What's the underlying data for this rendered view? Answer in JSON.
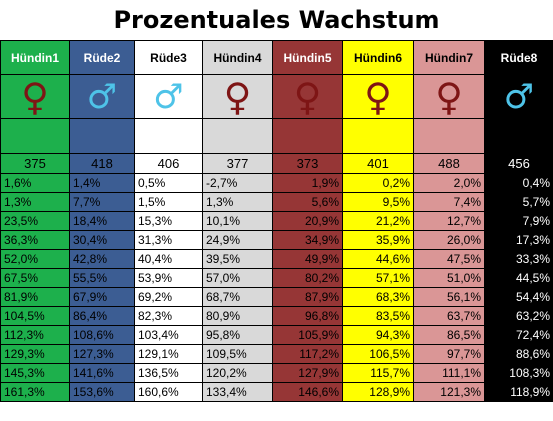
{
  "title": "Prozentuales Wachstum",
  "colors": {
    "green": "#1db04c",
    "blue": "#3c5d93",
    "white": "#ffffff",
    "gray": "#d9d9d9",
    "maroon": "#963636",
    "yellow": "#ffff00",
    "pink": "#da9696",
    "black": "#000000",
    "female_symbol": "#7e1515",
    "male_symbol": "#4ec3e8"
  },
  "columns": [
    {
      "name": "Hündin1",
      "symbol": "female-icon",
      "bg": "#1db04c",
      "header_text": "#ffffff"
    },
    {
      "name": "Rüde2",
      "symbol": "male-icon",
      "bg": "#3c5d93",
      "header_text": "#ffffff"
    },
    {
      "name": "Rüde3",
      "symbol": "male-icon",
      "bg": "#ffffff",
      "header_text": "#000000"
    },
    {
      "name": "Hündin4",
      "symbol": "female-icon",
      "bg": "#d9d9d9",
      "header_text": "#000000"
    },
    {
      "name": "Hündin5",
      "symbol": "female-icon",
      "bg": "#963636",
      "header_text": "#ffffff"
    },
    {
      "name": "Hündin6",
      "symbol": "female-icon",
      "bg": "#ffff00",
      "header_text": "#000000"
    },
    {
      "name": "Hündin7",
      "symbol": "female-icon",
      "bg": "#da9696",
      "header_text": "#000000"
    },
    {
      "name": "Rüde8",
      "symbol": "male-icon",
      "bg": "#000000",
      "header_text": "#ffffff"
    }
  ],
  "symbols": {
    "female": "♀",
    "male": "♂"
  },
  "base_values": [
    "375",
    "418",
    "406",
    "377",
    "373",
    "401",
    "488",
    "456"
  ],
  "rows": [
    [
      "1,6%",
      "1,4%",
      "0,5%",
      "-2,7%",
      "1,9%",
      "0,2%",
      "2,0%",
      "0,4%"
    ],
    [
      "1,3%",
      "7,7%",
      "1,5%",
      "1,3%",
      "5,6%",
      "9,5%",
      "7,4%",
      "5,7%"
    ],
    [
      "23,5%",
      "18,4%",
      "15,3%",
      "10,1%",
      "20,9%",
      "21,2%",
      "12,7%",
      "7,9%"
    ],
    [
      "36,3%",
      "30,4%",
      "31,3%",
      "24,9%",
      "34,9%",
      "35,9%",
      "26,0%",
      "17,3%"
    ],
    [
      "52,0%",
      "42,8%",
      "40,4%",
      "39,5%",
      "49,9%",
      "44,6%",
      "47,5%",
      "33,3%"
    ],
    [
      "67,5%",
      "55,5%",
      "53,9%",
      "57,0%",
      "80,2%",
      "57,1%",
      "51,0%",
      "44,5%"
    ],
    [
      "81,9%",
      "67,9%",
      "69,2%",
      "68,7%",
      "87,9%",
      "68,3%",
      "56,1%",
      "54,4%"
    ],
    [
      "104,5%",
      "86,4%",
      "82,3%",
      "80,9%",
      "96,8%",
      "83,5%",
      "63,7%",
      "63,2%"
    ],
    [
      "112,3%",
      "108,6%",
      "103,4%",
      "95,8%",
      "105,9%",
      "94,3%",
      "86,5%",
      "72,4%"
    ],
    [
      "129,3%",
      "127,3%",
      "129,1%",
      "109,5%",
      "117,2%",
      "106,5%",
      "97,7%",
      "88,6%"
    ],
    [
      "145,3%",
      "141,6%",
      "136,5%",
      "120,2%",
      "127,9%",
      "115,7%",
      "111,1%",
      "108,3%"
    ],
    [
      "161,3%",
      "153,6%",
      "160,6%",
      "133,4%",
      "146,6%",
      "128,9%",
      "121,3%",
      "118,9%"
    ]
  ]
}
